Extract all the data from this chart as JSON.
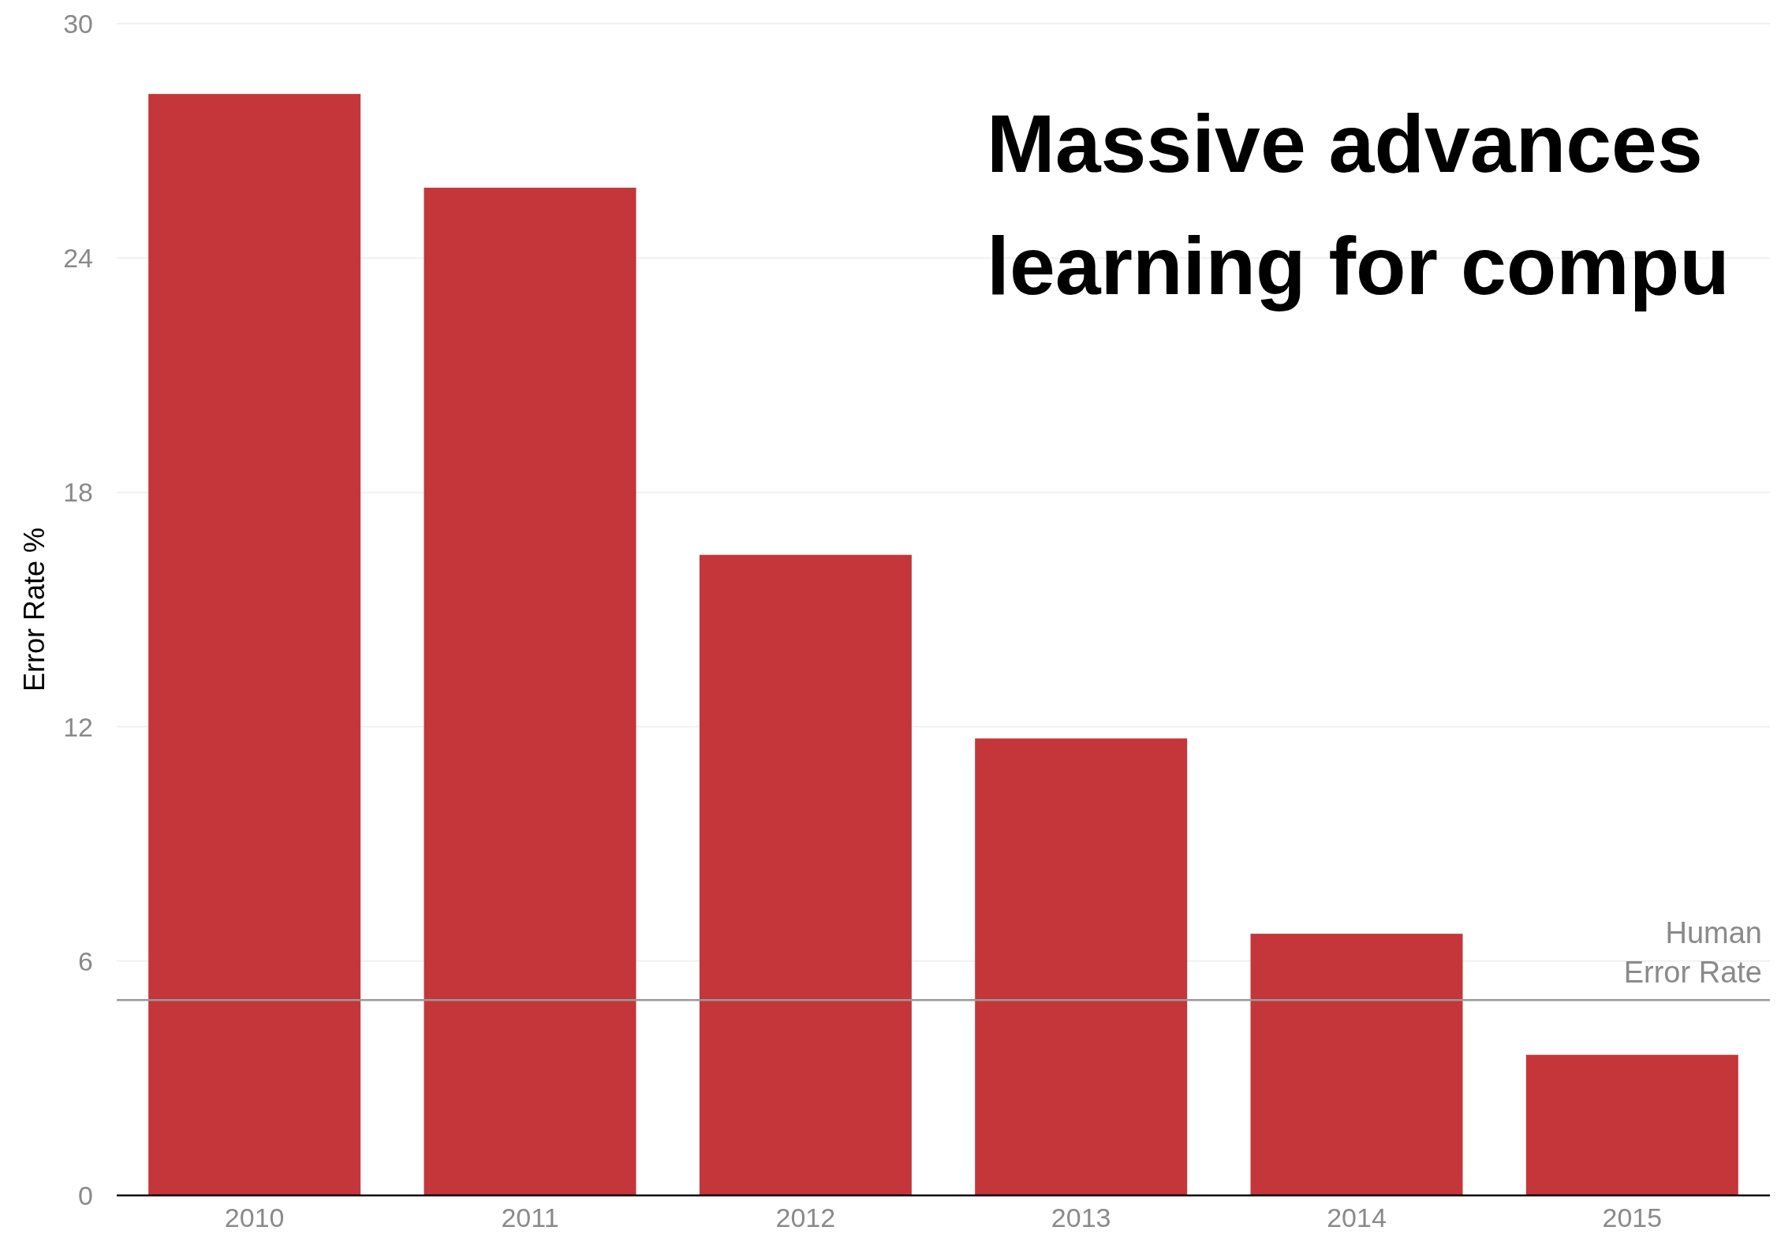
{
  "chart_data": {
    "type": "bar",
    "title": "Massive advances\nlearning for compu",
    "ylabel": "Error Rate %",
    "categories": [
      "2010",
      "2011",
      "2012",
      "2013",
      "2014",
      "2015"
    ],
    "values": [
      28.2,
      25.8,
      16.4,
      11.7,
      6.7,
      3.6
    ],
    "color": "#c4363a",
    "ylim": [
      0,
      30
    ],
    "yticks": [
      0,
      6,
      12,
      18,
      24,
      30
    ],
    "grid": "y",
    "ref_lines": [
      {
        "axis": "y",
        "value": 5,
        "label": "Human\nError Rate",
        "color": "#999999"
      }
    ]
  }
}
